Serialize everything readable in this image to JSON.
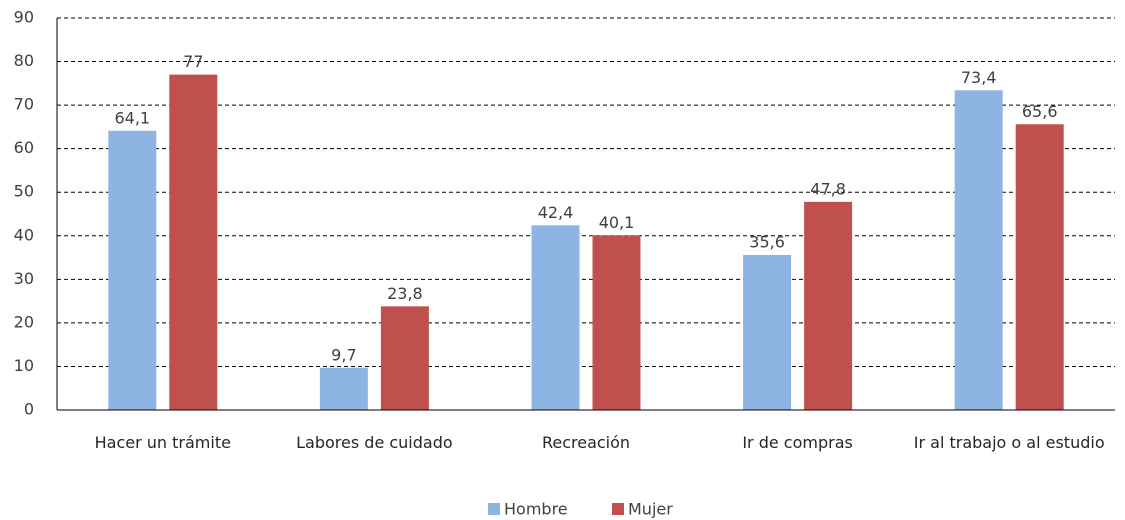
{
  "chart_data": {
    "type": "bar",
    "categories": [
      "Hacer un trámite",
      "Labores de cuidado",
      "Recreación",
      "Ir de compras",
      "Ir al trabajo o al estudio"
    ],
    "series": [
      {
        "name": "Hombre",
        "color": "#8eb4e3",
        "values": [
          64.1,
          9.7,
          42.4,
          35.6,
          73.4
        ],
        "value_labels": [
          "64,1",
          "9,7",
          "42,4",
          "35,6",
          "73,4"
        ]
      },
      {
        "name": "Mujer",
        "color": "#c0504d",
        "values": [
          77,
          23.8,
          40.1,
          47.8,
          65.6
        ],
        "value_labels": [
          "77",
          "23,8",
          "40,1",
          "47,8",
          "65,6"
        ]
      }
    ],
    "ylim": [
      0,
      90
    ],
    "yticks": [
      0,
      10,
      20,
      30,
      40,
      50,
      60,
      70,
      80,
      90
    ],
    "grid": true,
    "legend": "bottom"
  }
}
